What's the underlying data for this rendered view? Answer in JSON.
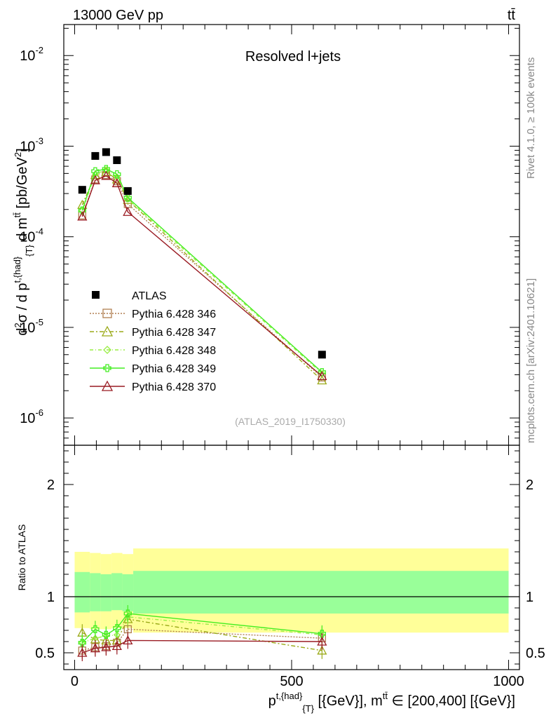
{
  "header": {
    "left": "13000 GeV pp",
    "right": "tt̄"
  },
  "right_labels": {
    "rivet": "Rivet 4.1.0, ≥ 100k events",
    "mcplots": "mcplots.cern.ch [arXiv:2401.10621]"
  },
  "analysis_id": "(ATLAS_2019_I1750330)",
  "chart_data": [
    {
      "type": "scatter",
      "title": "Resolved l+jets",
      "ylabel": "d²σ / d p^{t,{had}}_{T} d m^{tt̄} [pb/GeV²]",
      "xlabel": "p^{t,{had}}_{T} [{GeV}], m^{tt̄} ∈ [200,400] [{GeV}]",
      "yscale": "log",
      "xlim": [
        -25,
        1025
      ],
      "ylim": [
        5e-07,
        0.022
      ],
      "ytick_labels": [
        "10^{-6}",
        "10^{-5}",
        "10^{-4}",
        "10^{-3}",
        "10^{-2}"
      ],
      "x": [
        17.5,
        47.5,
        72.5,
        97.5,
        122.5,
        570
      ],
      "series": [
        {
          "name": "ATLAS",
          "color": "#000000",
          "values": [
            0.00033,
            0.00078,
            0.00086,
            0.0007,
            0.00032,
            5e-06
          ]
        },
        {
          "name": "Pythia 6.428 346",
          "color": "#b07f50",
          "values": [
            0.000172,
            0.00043,
            0.00048,
            0.00041,
            0.00023,
            2.8e-06
          ]
        },
        {
          "name": "Pythia 6.428 347",
          "color": "#9aaa18",
          "values": [
            0.000225,
            0.00048,
            0.00052,
            0.00043,
            0.000255,
            2.6e-06
          ]
        },
        {
          "name": "Pythia 6.428 348",
          "color": "#99ee44",
          "values": [
            0.000195,
            0.00049,
            0.00055,
            0.00046,
            0.00026,
            3.1e-06
          ]
        },
        {
          "name": "Pythia 6.428 349",
          "color": "#44ee22",
          "values": [
            0.000195,
            0.00053,
            0.00056,
            0.00049,
            0.00027,
            3.2e-06
          ]
        },
        {
          "name": "Pythia 6.428 370",
          "color": "#991a22",
          "values": [
            0.000167,
            0.00042,
            0.00047,
            0.00039,
            0.000188,
            2.9e-06
          ]
        }
      ]
    },
    {
      "type": "line",
      "ylabel": "Ratio to ATLAS",
      "xlim": [
        -25,
        1025
      ],
      "ylim": [
        0.35,
        2.35
      ],
      "x_tick_labels": [
        "0",
        "500",
        "1000"
      ],
      "y_tick_labels": [
        "0.5",
        "1",
        "2"
      ],
      "x": [
        17.5,
        47.5,
        72.5,
        97.5,
        122.5,
        570
      ],
      "bands": {
        "yellow_color": "#ffff99",
        "green_color": "#99ff99",
        "x_edges": [
          0,
          35,
          60,
          85,
          110,
          135,
          1000
        ],
        "yellow_lower": [
          0.72,
          0.71,
          0.71,
          0.72,
          0.72,
          0.68
        ],
        "yellow_upper": [
          1.4,
          1.39,
          1.38,
          1.39,
          1.38,
          1.43
        ],
        "green_lower": [
          0.86,
          0.87,
          0.87,
          0.88,
          0.87,
          0.85
        ],
        "green_upper": [
          1.22,
          1.21,
          1.2,
          1.21,
          1.2,
          1.23
        ]
      },
      "series": [
        {
          "name": "Pythia 6.428 346",
          "values": [
            0.52,
            0.55,
            0.56,
            0.59,
            0.71,
            0.63
          ]
        },
        {
          "name": "Pythia 6.428 347",
          "values": [
            0.68,
            0.62,
            0.61,
            0.61,
            0.8,
            0.52
          ]
        },
        {
          "name": "Pythia 6.428 348",
          "values": [
            0.59,
            0.63,
            0.65,
            0.66,
            0.82,
            0.66
          ]
        },
        {
          "name": "Pythia 6.428 349",
          "values": [
            0.59,
            0.71,
            0.66,
            0.72,
            0.85,
            0.67
          ]
        },
        {
          "name": "Pythia 6.428 370",
          "values": [
            0.5,
            0.54,
            0.55,
            0.56,
            0.61,
            0.6
          ]
        }
      ]
    }
  ]
}
